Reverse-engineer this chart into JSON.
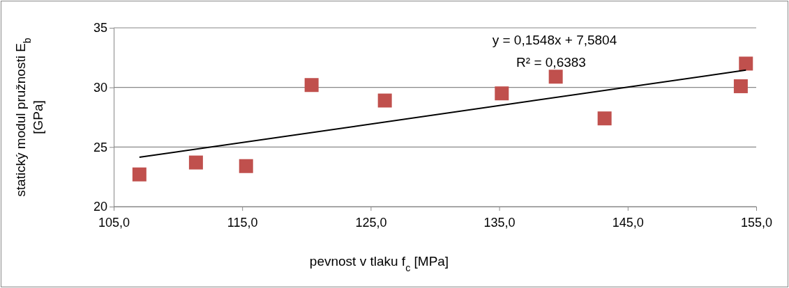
{
  "chart_data": {
    "type": "scatter",
    "xlabel": "pevnost v tlaku f$_{c}$ [MPa]",
    "ylabel": "statický modul pružnosti E$_{b}$ [GPa]",
    "xlim": [
      105,
      155
    ],
    "xticks": [
      {
        "value": 105,
        "label": "105,0"
      },
      {
        "value": 115,
        "label": "115,0"
      },
      {
        "value": 125,
        "label": "125,0"
      },
      {
        "value": 135,
        "label": "135,0"
      },
      {
        "value": 145,
        "label": "145,0"
      },
      {
        "value": 155,
        "label": "155,0"
      }
    ],
    "ylim": [
      20,
      35
    ],
    "yticks": [
      20,
      25,
      30,
      35
    ],
    "grid": "y",
    "series": [
      {
        "color": "#c0504d",
        "marker": "square",
        "x": [
          107.0,
          111.4,
          115.3,
          120.4,
          126.1,
          135.2,
          139.4,
          143.2,
          153.8,
          154.2
        ],
        "values": [
          22.7,
          23.7,
          23.4,
          30.2,
          28.9,
          29.5,
          30.9,
          27.4,
          30.1,
          32.0
        ]
      },
      {
        "type": "line",
        "color": "#000000",
        "x": [
          107.0,
          154.2
        ],
        "values": [
          24.14,
          31.45
        ]
      }
    ],
    "annotations": [
      "y = 0,1548x + 7,5804",
      "R² = 0,6383"
    ]
  }
}
